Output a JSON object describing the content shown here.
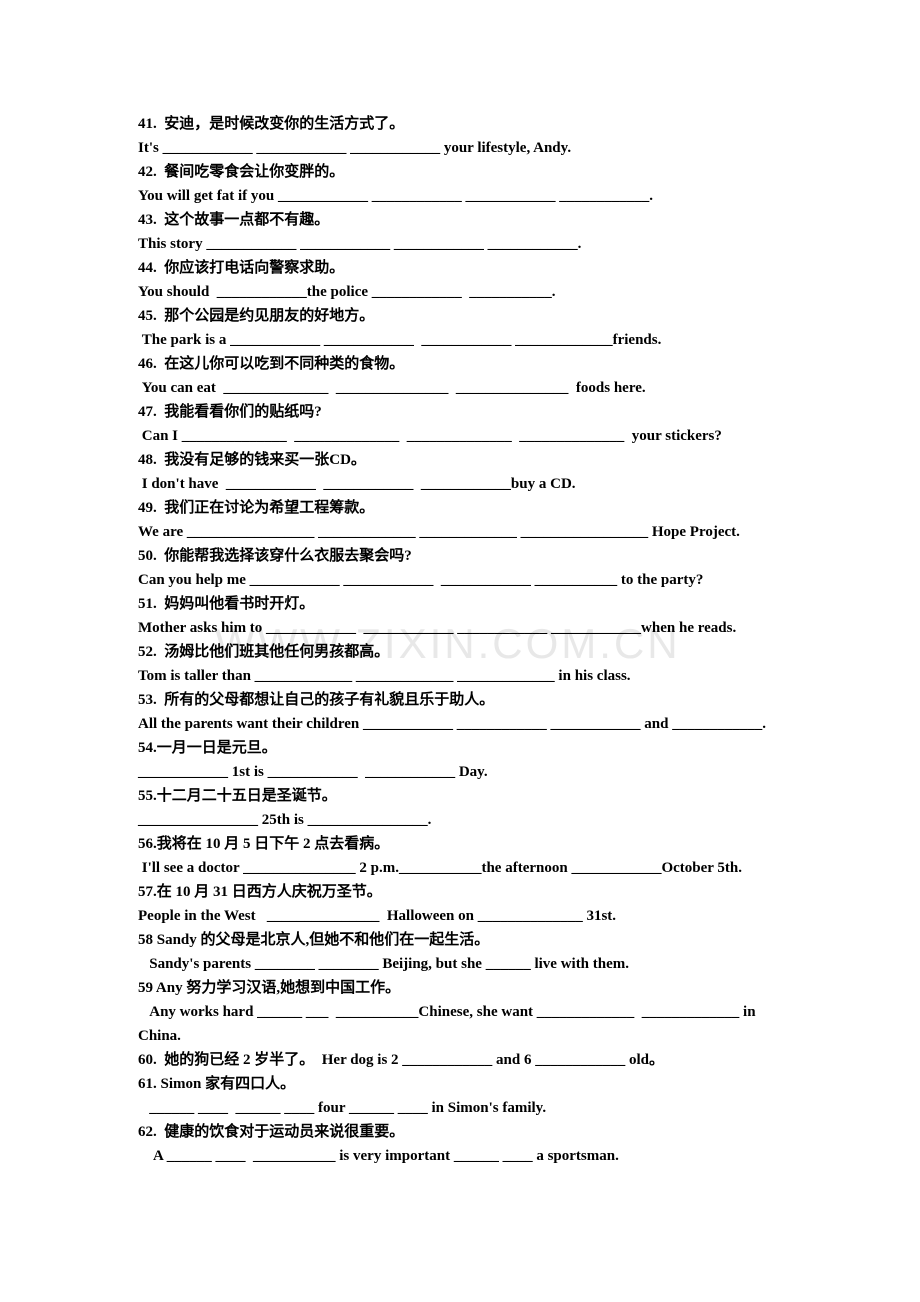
{
  "watermark": "WWW.ZIXIN.COM.CN",
  "lines": [
    {
      "text": "41.  安迪，是时候改变你的生活方式了。",
      "cls": ""
    },
    {
      "text": "It's ____________ ____________ ____________ your lifestyle, Andy.",
      "cls": ""
    },
    {
      "text": "42.  餐间吃零食会让你变胖的。",
      "cls": ""
    },
    {
      "text": "You will get fat if you ____________ ____________ ____________ ____________.",
      "cls": ""
    },
    {
      "text": "43.  这个故事一点都不有趣。",
      "cls": ""
    },
    {
      "text": "This story ____________ ____________ ____________ ____________.",
      "cls": ""
    },
    {
      "text": "44.  你应该打电话向警察求助。",
      "cls": ""
    },
    {
      "text": "You should  ____________the police ____________  ___________.",
      "cls": ""
    },
    {
      "text": "45.  那个公园是约见朋友的好地方。",
      "cls": ""
    },
    {
      "text": " The park is a ____________ ____________  ____________ _____________friends.",
      "cls": ""
    },
    {
      "text": "46.  在这儿你可以吃到不同种类的食物。",
      "cls": ""
    },
    {
      "text": " You can eat  ______________  _______________  _______________  foods here.",
      "cls": ""
    },
    {
      "text": "47.  我能看看你们的贴纸吗?",
      "cls": ""
    },
    {
      "text": " Can I ______________  ______________  ______________  ______________  your stickers?",
      "cls": ""
    },
    {
      "text": "48.  我没有足够的钱来买一张CD。",
      "cls": ""
    },
    {
      "text": " I don't have  ____________  ____________  ____________buy a CD.",
      "cls": ""
    },
    {
      "text": "49.  我们正在讨论为希望工程筹款。",
      "cls": ""
    },
    {
      "text": "We are _________________ _____________ _____________ _________________ Hope Project.",
      "cls": ""
    },
    {
      "text": "50.  你能帮我选择该穿什么衣服去聚会吗?",
      "cls": ""
    },
    {
      "text": "Can you help me ____________ ____________  ____________ ___________ to the party?",
      "cls": ""
    },
    {
      "text": "51.  妈妈叫他看书时开灯。",
      "cls": ""
    },
    {
      "text": "Mother asks him to ____________  ____________ ____________ ____________when he reads.",
      "cls": ""
    },
    {
      "text": "52.  汤姆比他们班其他任何男孩都高。",
      "cls": ""
    },
    {
      "text": "Tom is taller than _____________ _____________ _____________ in his class.",
      "cls": ""
    },
    {
      "text": "53.  所有的父母都想让自己的孩子有礼貌且乐于助人。",
      "cls": ""
    },
    {
      "text": "All the parents want their children ____________ ____________ ____________ and ____________.",
      "cls": ""
    },
    {
      "text": "54.一月一日是元旦。",
      "cls": ""
    },
    {
      "text": "____________ 1st is ____________  ____________ Day.",
      "cls": ""
    },
    {
      "text": "55.十二月二十五日是圣诞节。",
      "cls": ""
    },
    {
      "text": "________________ 25th is ________________.",
      "cls": ""
    },
    {
      "text": "56.我将在 10 月 5 日下午 2 点去看病。",
      "cls": ""
    },
    {
      "text": " I'll see a doctor _______________ 2 p.m.___________the afternoon ____________October 5th.",
      "cls": ""
    },
    {
      "text": "57.在 10 月 31 日西方人庆祝万圣节。",
      "cls": ""
    },
    {
      "text": "People in the West   _______________  Halloween on ______________ 31st.",
      "cls": ""
    },
    {
      "text": "58 Sandy 的父母是北京人,但她不和他们在一起生活。",
      "cls": ""
    },
    {
      "text": "   Sandy's parents ________ ________ Beijing, but she ______ live with them.",
      "cls": ""
    },
    {
      "text": "59 Any 努力学习汉语,她想到中国工作。",
      "cls": ""
    },
    {
      "text": "   Any works hard ______ ___  ___________Chinese, she want _____________  _____________ in China.",
      "cls": ""
    },
    {
      "text": "60.  她的狗已经 2 岁半了。  Her dog is 2 ____________ and 6 ____________ old。",
      "cls": ""
    },
    {
      "text": "61. Simon 家有四口人。",
      "cls": ""
    },
    {
      "text": "   ______ ____  ______ ____ four ______ ____ in Simon's family.",
      "cls": ""
    },
    {
      "text": "62.  健康的饮食对于运动员来说很重要。",
      "cls": ""
    },
    {
      "text": "    A ______ ____  ___________ is very important ______ ____ a sportsman.",
      "cls": ""
    }
  ]
}
